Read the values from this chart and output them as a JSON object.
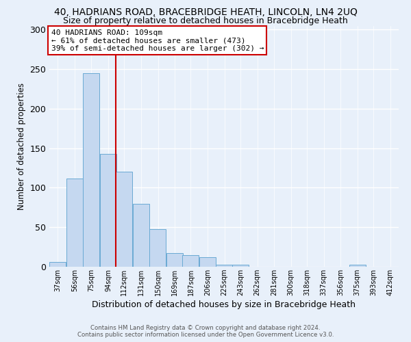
{
  "title1": "40, HADRIANS ROAD, BRACEBRIDGE HEATH, LINCOLN, LN4 2UQ",
  "title2": "Size of property relative to detached houses in Bracebridge Heath",
  "xlabel": "Distribution of detached houses by size in Bracebridge Heath",
  "ylabel": "Number of detached properties",
  "footer1": "Contains HM Land Registry data © Crown copyright and database right 2024.",
  "footer2": "Contains public sector information licensed under the Open Government Licence v3.0.",
  "annotation_line1": "40 HADRIANS ROAD: 109sqm",
  "annotation_line2": "← 61% of detached houses are smaller (473)",
  "annotation_line3": "39% of semi-detached houses are larger (302) →",
  "bins": [
    37,
    56,
    75,
    94,
    112,
    131,
    150,
    169,
    187,
    206,
    225,
    243,
    262,
    281,
    300,
    318,
    337,
    356,
    375,
    393,
    412
  ],
  "bar_heights": [
    6,
    112,
    245,
    143,
    120,
    80,
    48,
    17,
    15,
    12,
    3,
    3,
    0,
    0,
    0,
    0,
    0,
    0,
    3,
    0,
    0
  ],
  "bar_color": "#c5d8f0",
  "bar_edge_color": "#6aaad4",
  "red_line_x": 112,
  "ylim": [
    0,
    305
  ],
  "yticks": [
    0,
    50,
    100,
    150,
    200,
    250,
    300
  ],
  "bg_color": "#e8f0fa",
  "grid_color": "#ffffff",
  "annotation_box_color": "#ffffff",
  "annotation_box_edge_color": "#cc0000",
  "red_line_color": "#cc0000",
  "title1_fontsize": 10,
  "title2_fontsize": 9,
  "xlabel_fontsize": 9,
  "ylabel_fontsize": 8.5
}
